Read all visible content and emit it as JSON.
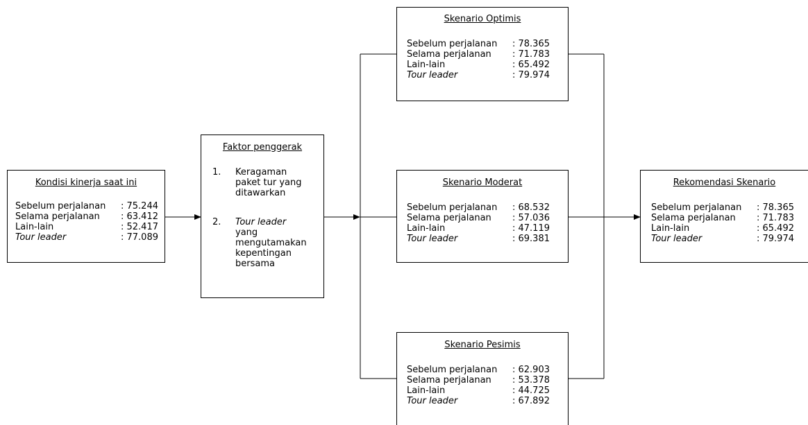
{
  "kondisi": {
    "title": "Kondisi kinerja saat ini",
    "rows": [
      {
        "label": "Sebelum perjalanan",
        "value": ": 75.244"
      },
      {
        "label": "Selama perjalanan",
        "value": ": 63.412"
      },
      {
        "label": "Lain-lain",
        "value": ": 52.417"
      },
      {
        "label": "Tour leader",
        "value": ": 77.089"
      }
    ]
  },
  "faktor": {
    "title": "Faktor penggerak",
    "items": [
      {
        "num": "1.",
        "text": "Keragaman paket tur yang ditawarkan"
      },
      {
        "num": "2.",
        "text_italic": "Tour leader",
        "text": "yang mengutamakan kepentingan bersama"
      }
    ]
  },
  "optimis": {
    "title": "Skenario Optimis",
    "rows": [
      {
        "label": "Sebelum perjalanan",
        "value": ": 78.365"
      },
      {
        "label": "Selama perjalanan",
        "value": ": 71.783"
      },
      {
        "label": "Lain-lain",
        "value": ": 65.492"
      },
      {
        "label": "Tour leader",
        "value": ": 79.974"
      }
    ]
  },
  "moderat": {
    "title": "Skenario Moderat",
    "rows": [
      {
        "label": "Sebelum perjalanan",
        "value": ": 68.532"
      },
      {
        "label": "Selama perjalanan",
        "value": ": 57.036"
      },
      {
        "label": "Lain-lain",
        "value": ": 47.119"
      },
      {
        "label": "Tour leader",
        "value": ": 69.381"
      }
    ]
  },
  "pesimis": {
    "title": "Skenario Pesimis",
    "rows": [
      {
        "label": "Sebelum perjalanan",
        "value": ": 62.903"
      },
      {
        "label": "Selama perjalanan",
        "value": ": 53.378"
      },
      {
        "label": "Lain-lain",
        "value": ": 44.725"
      },
      {
        "label": "Tour leader",
        "value": ": 67.892"
      }
    ]
  },
  "rekomendasi": {
    "title": "Rekomendasi Skenario",
    "rows": [
      {
        "label": "Sebelum perjalanan",
        "value": ": 78.365"
      },
      {
        "label": "Selama perjalanan",
        "value": ": 71.783"
      },
      {
        "label": "Lain-lain",
        "value": ": 65.492"
      },
      {
        "label": "Tour leader",
        "value": ": 79.974"
      }
    ]
  }
}
